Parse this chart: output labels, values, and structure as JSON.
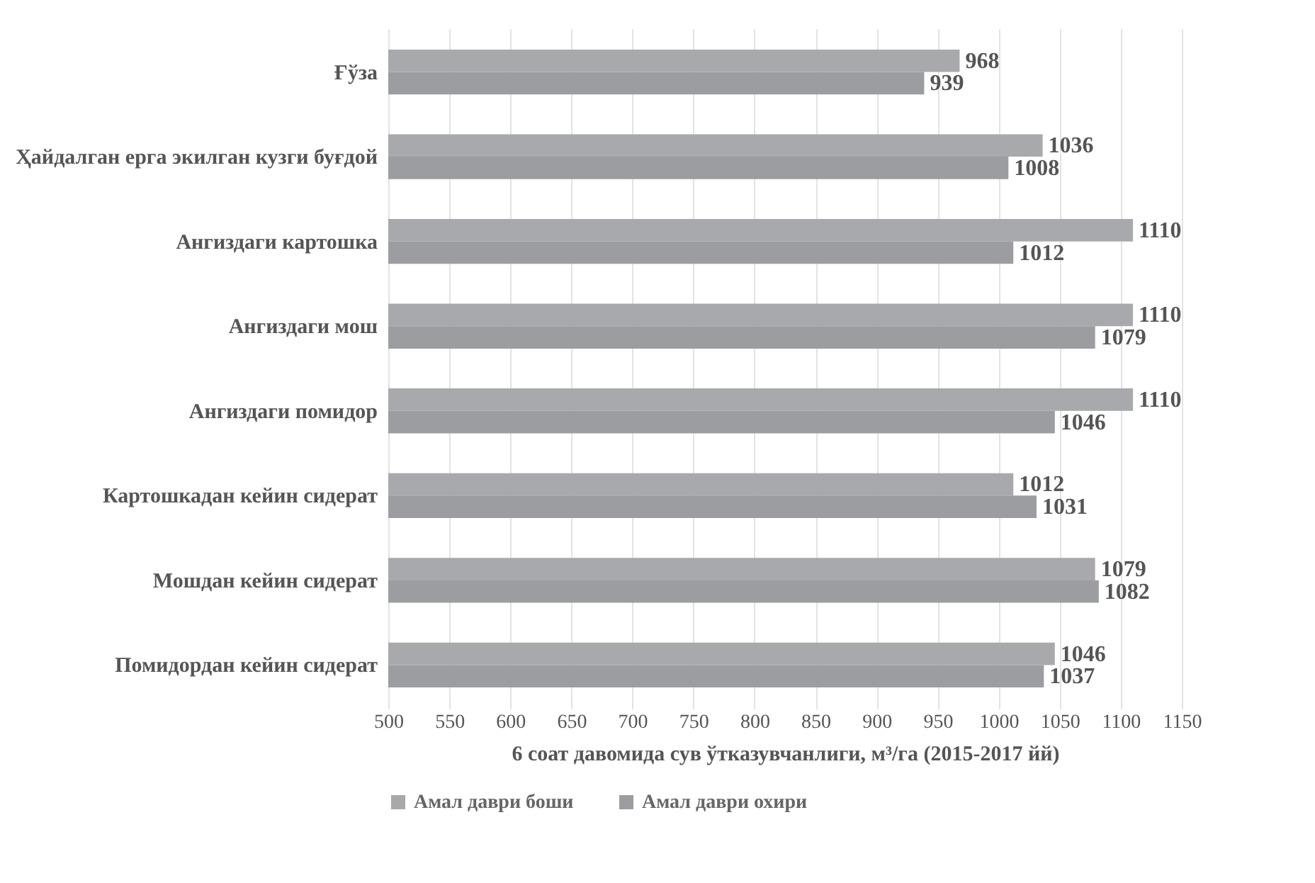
{
  "chart_data": {
    "type": "bar",
    "orientation": "horizontal",
    "categories": [
      "Ғўза",
      "Ҳайдалган ерга экилган кузги буғдой",
      "Ангиздаги картошка",
      "Ангиздаги мош",
      "Ангиздаги помидор",
      "Картошкадан кейин сидерат",
      "Мошдан кейин сидерат",
      "Помидордан кейин сидерат"
    ],
    "series": [
      {
        "name": "Амал даври боши",
        "color": "#a8a9ac",
        "values": [
          968,
          1036,
          1110,
          1110,
          1110,
          1012,
          1079,
          1046
        ]
      },
      {
        "name": "Амал даври охири",
        "color": "#9c9da1",
        "values": [
          939,
          1008,
          1012,
          1079,
          1046,
          1031,
          1082,
          1037
        ]
      }
    ],
    "xlabel": "6 соат давомида сув ўтказувчанлиги, м³/га (2015-2017 йй)",
    "xlim": [
      500,
      1150
    ],
    "xticks": [
      500,
      550,
      600,
      650,
      700,
      750,
      800,
      850,
      900,
      950,
      1000,
      1050,
      1100,
      1150
    ],
    "grid": "x",
    "legend": "bottom",
    "data_labels": true
  }
}
